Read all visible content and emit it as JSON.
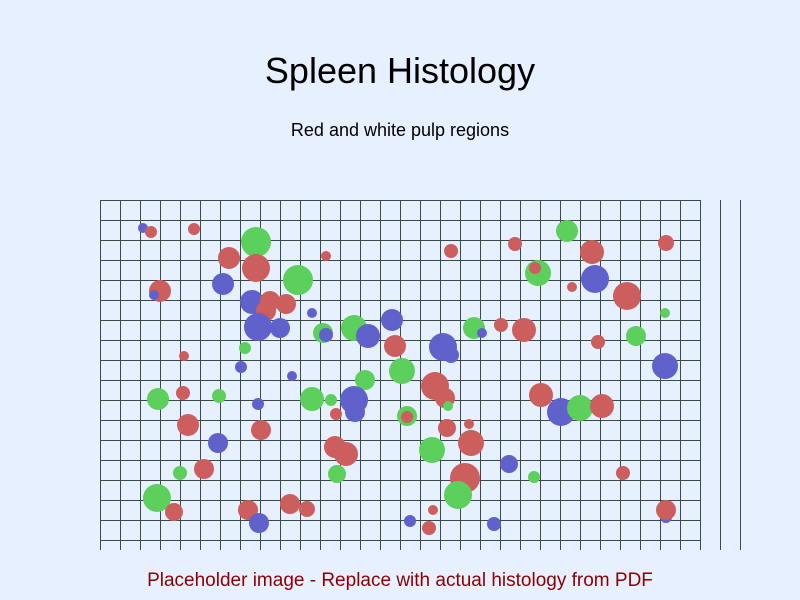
{
  "header": {
    "title": "Spleen Histology",
    "subtitle": "Red and white pulp regions"
  },
  "footer": {
    "note": "Placeholder image - Replace with actual histology from PDF"
  },
  "colors": {
    "background": "#e6f0ff",
    "grid": "#3a4a44",
    "red": "#cc5e5e",
    "green": "#5ccf5c",
    "blue": "#6161cc",
    "note": "#8b0000"
  }
}
